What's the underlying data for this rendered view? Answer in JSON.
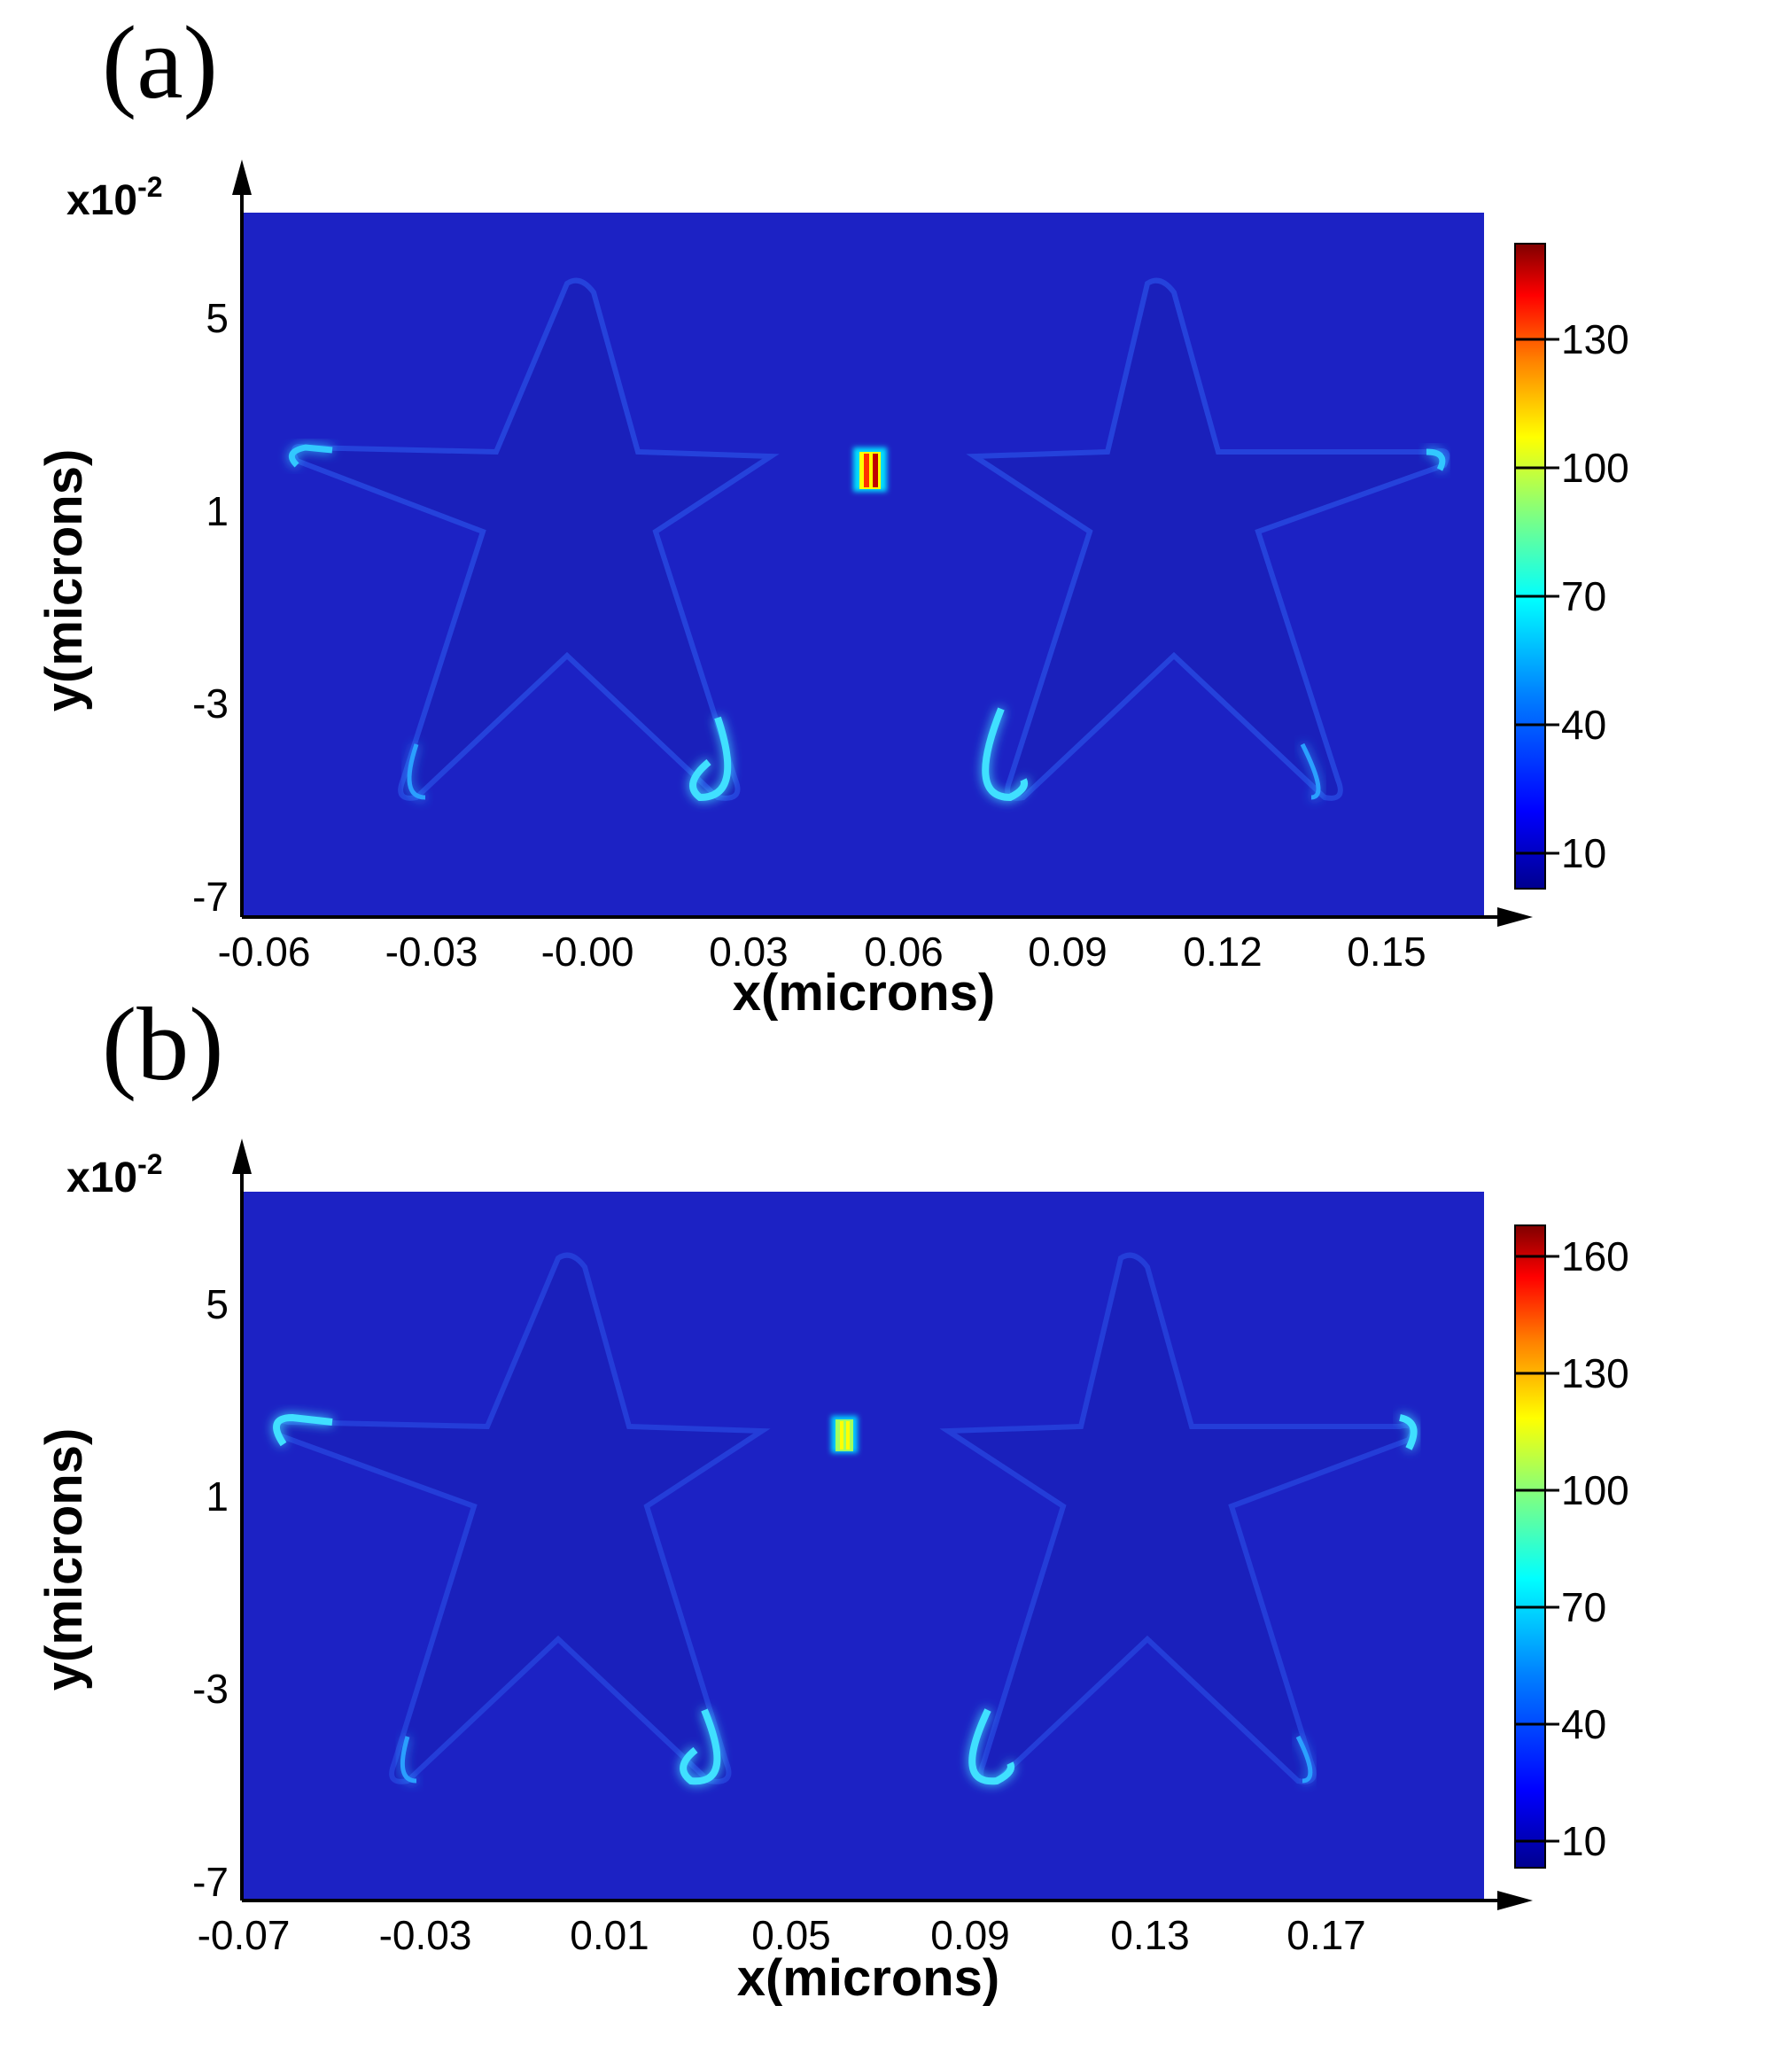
{
  "figure_title": "",
  "chart_data": [
    {
      "type": "heatmap",
      "panel_label": "(a)",
      "xlabel": "x(microns)",
      "ylabel": "y(microns)",
      "y_multiplier": "x10",
      "y_multiplier_exp": "-2",
      "x_ticks": [
        "-0.06",
        "-0.03",
        "-0.00",
        "0.03",
        "0.06",
        "0.09",
        "0.12",
        "0.15"
      ],
      "y_ticks": [
        "5",
        "1",
        "-3",
        "-7"
      ],
      "colorbar_ticks": [
        "130",
        "100",
        "70",
        "40",
        "10"
      ],
      "colorbar_range": [
        0,
        150
      ],
      "colormap": [
        "#00008f",
        "#0000ff",
        "#0080ff",
        "#00ffff",
        "#80ff80",
        "#ffff00",
        "#ff8000",
        "#ff0000",
        "#800000"
      ],
      "background_color": "#1c22c4",
      "hotspot_max": 150
    },
    {
      "type": "heatmap",
      "panel_label": "(b)",
      "xlabel": "x(microns)",
      "ylabel": "y(microns)",
      "y_multiplier": "x10",
      "y_multiplier_exp": "-2",
      "x_ticks": [
        "-0.07",
        "-0.03",
        "0.01",
        "0.05",
        "0.09",
        "0.13",
        "0.17"
      ],
      "y_ticks": [
        "5",
        "1",
        "-3",
        "-7"
      ],
      "colorbar_ticks": [
        "160",
        "130",
        "100",
        "70",
        "40",
        "10"
      ],
      "colorbar_range": [
        0,
        170
      ],
      "colormap": [
        "#00008f",
        "#0000ff",
        "#0080ff",
        "#00ffff",
        "#80ff80",
        "#ffff00",
        "#ff8000",
        "#ff0000",
        "#800000"
      ],
      "background_color": "#1c22c4",
      "hotspot_max": 100
    }
  ]
}
